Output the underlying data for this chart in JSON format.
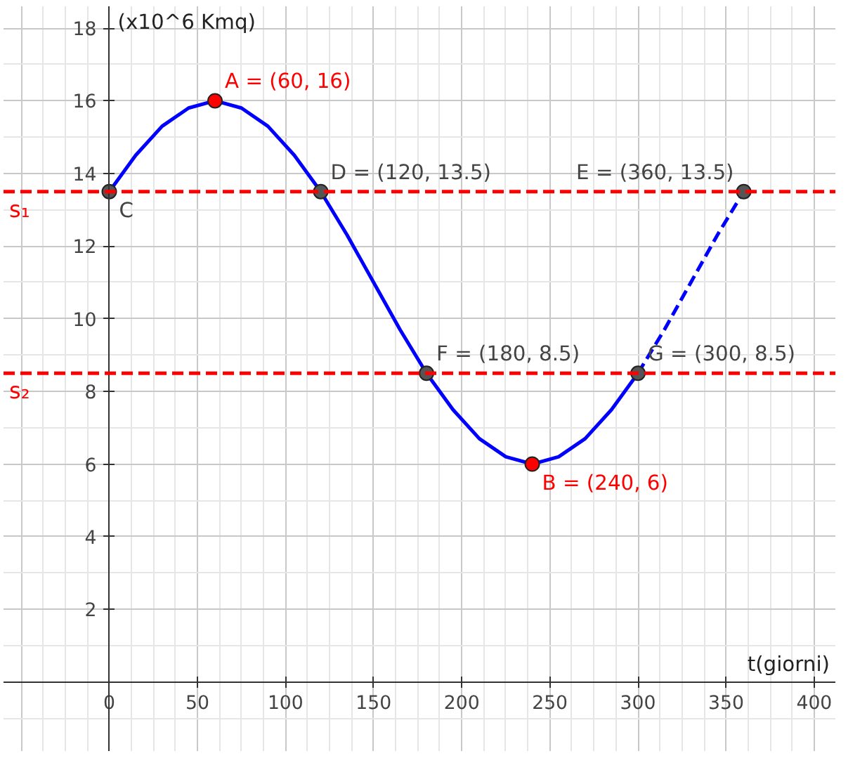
{
  "chart_data": {
    "type": "line",
    "xlabel": "t(giorni)",
    "ylabel": "(x10^6 Kmq)",
    "xlim": [
      -60,
      412
    ],
    "ylim": [
      -1.9,
      18.6
    ],
    "xticks": [
      0,
      50,
      100,
      150,
      200,
      250,
      300,
      350,
      400
    ],
    "yticks": [
      2,
      4,
      6,
      8,
      10,
      12,
      14,
      16,
      18
    ],
    "grid": true,
    "series": [
      {
        "color": "#0000ff",
        "line_style": "solid",
        "x": [
          0,
          15,
          30,
          45,
          60,
          75,
          90,
          105,
          120,
          135,
          150,
          165,
          180,
          195,
          210,
          225,
          240,
          255,
          270,
          285,
          300
        ],
        "values": [
          13.5,
          14.5,
          15.3,
          15.8,
          16,
          15.8,
          15.3,
          14.5,
          13.5,
          12.3,
          11,
          9.7,
          8.5,
          7.5,
          6.7,
          6.2,
          6,
          6.2,
          6.7,
          7.5,
          8.5
        ]
      },
      {
        "color": "#0000ff",
        "line_style": "dashed",
        "x": [
          300,
          315,
          330,
          345,
          360
        ],
        "values": [
          8.5,
          9.7,
          11,
          12.3,
          13.5
        ]
      },
      {
        "type": "scatter",
        "marker": "circle",
        "x": [
          0,
          60,
          120,
          180,
          240,
          300,
          360
        ],
        "values": [
          13.5,
          16,
          13.5,
          8.5,
          6,
          8.5,
          13.5
        ],
        "colors": [
          "#555555",
          "#ff0000",
          "#555555",
          "#555555",
          "#ff0000",
          "#555555",
          "#555555"
        ]
      }
    ],
    "ref_lines": [
      {
        "axis": "y",
        "value": 13.5,
        "label": "s₁",
        "color": "#ff0000",
        "line_style": "dashed"
      },
      {
        "axis": "y",
        "value": 8.5,
        "label": "s₂",
        "color": "#ff0000",
        "line_style": "dashed"
      }
    ],
    "annotations": [
      {
        "text": "C",
        "x": 0,
        "y": 13.5
      },
      {
        "text": "A = (60, 16)",
        "x": 60,
        "y": 16
      },
      {
        "text": "D = (120, 13.5)",
        "x": 120,
        "y": 13.5
      },
      {
        "text": "F = (180, 8.5)",
        "x": 180,
        "y": 8.5
      },
      {
        "text": "B = (240, 6)",
        "x": 240,
        "y": 6
      },
      {
        "text": "G = (300, 8.5)",
        "x": 300,
        "y": 8.5
      },
      {
        "text": "E = (360, 13.5)",
        "x": 360,
        "y": 13.5
      }
    ]
  }
}
